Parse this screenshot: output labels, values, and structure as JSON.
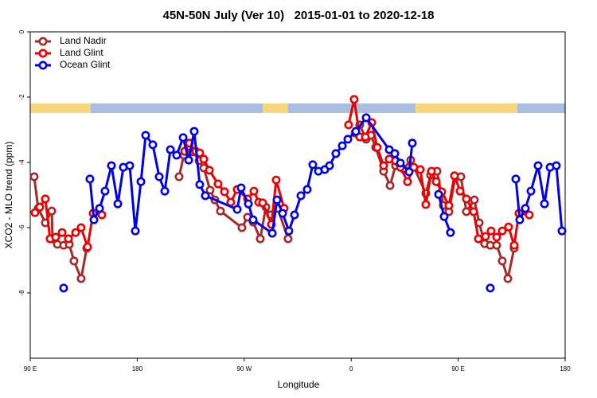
{
  "chart_data": {
    "type": "line",
    "title": "45N-50N July (Ver 10)   2015-01-01 to 2020-12-18",
    "xlabel": "Longitude",
    "ylabel": "XCO2 - MLO trend (ppm)",
    "xlim": [
      90,
      540
    ],
    "xticks": [
      {
        "value": 90,
        "label": "90 E"
      },
      {
        "value": 180,
        "label": "180"
      },
      {
        "value": 270,
        "label": "90 W"
      },
      {
        "value": 360,
        "label": "0"
      },
      {
        "value": 450,
        "label": "90 E"
      },
      {
        "value": 540,
        "label": "180"
      }
    ],
    "ylim": [
      -10,
      0
    ],
    "yticks": [
      0,
      -2,
      -4,
      -6,
      -8
    ],
    "legend": "top-left",
    "series": [
      {
        "name": "Land Nadir",
        "color": "#a52a2a",
        "x": [
          93.3,
          96.7,
          102.7,
          108.1,
          108.7,
          112.8,
          118.1,
          122.8,
          126.8,
          132.8,
          137.5,
          null,
          215.2,
          219.2,
          223.3,
          227.3,
          232.0,
          236.0,
          241.3,
          245.3,
          250.0,
          268.1,
          272.8,
          277.5,
          283.5,
          288.2,
          292.2,
          298.2,
          306.9,
          null,
          363.2,
          367.2,
          372.6,
          376.6,
          380.6,
          387.3,
          392.7,
          397.3,
          400.7,
          404.0,
          410.1,
          422.8,
          426.8,
          432.2,
          437.5,
          442.2,
          447.6,
          452.3,
          456.9,
          463.6,
          467.7,
          472.3,
          477.0,
          482.4,
          487.1,
          491.8,
          497.1
        ],
        "values": [
          -4.44,
          -5.41,
          -5.85,
          -5.49,
          -6.34,
          -6.51,
          -6.54,
          -6.51,
          -7.02,
          -7.56,
          -6.63,
          null,
          -4.44,
          -3.78,
          -3.71,
          -3.68,
          -3.95,
          -4.17,
          -4.85,
          -5.15,
          -5.49,
          -6.0,
          -5.68,
          -5.83,
          -6.34,
          -5.37,
          -5.61,
          -5.41,
          -6.34,
          null,
          -3.1,
          -2.85,
          -3.29,
          -3.17,
          -3.54,
          -4.27,
          -4.71,
          -4.1,
          -4.05,
          -4.2,
          -3.93,
          -4.95,
          -4.39,
          -4.27,
          -5.32,
          -5.51,
          -4.44,
          -4.44,
          -5.51,
          -5.15,
          -5.85,
          -6.49,
          -6.54,
          -6.54,
          -7.02,
          -7.56,
          -6.63
        ]
      },
      {
        "name": "Land Glint",
        "color": "#ee0000",
        "x": [
          94.0,
          98.0,
          102.7,
          106.7,
          111.4,
          116.8,
          122.1,
          128.2,
          132.8,
          138.2,
          142.9,
          150.3,
          null,
          219.9,
          223.9,
          229.3,
          232.6,
          236.0,
          240.7,
          248.0,
          253.4,
          258.7,
          264.1,
          272.8,
          278.2,
          282.2,
          285.5,
          292.9,
          296.9,
          303.6,
          null,
          357.8,
          362.5,
          367.2,
          371.9,
          377.3,
          381.9,
          387.3,
          392.0,
          397.3,
          401.4,
          407.4,
          412.7,
          418.1,
          422.8,
          427.5,
          431.5,
          436.2,
          442.2,
          446.9,
          451.6,
          456.9,
          463.0,
          467.0,
          473.0,
          477.7,
          482.4,
          487.1,
          492.4,
          497.1,
          501.1,
          509.8
        ],
        "values": [
          -5.54,
          -5.37,
          -5.12,
          -6.34,
          -6.29,
          -6.15,
          -6.34,
          -6.15,
          -6.0,
          -6.59,
          -5.56,
          -5.61,
          null,
          -3.66,
          -3.41,
          -3.66,
          -3.71,
          -3.9,
          -4.24,
          -4.66,
          -4.9,
          -5.22,
          -4.83,
          -5.12,
          -4.88,
          -5.22,
          -5.24,
          -5.9,
          -4.54,
          -5.41,
          null,
          -2.85,
          -2.07,
          -3.22,
          -3.22,
          -2.78,
          -3.54,
          -4.1,
          -3.9,
          -3.95,
          -4.15,
          -4.59,
          -4.15,
          -4.22,
          -5.29,
          -4.27,
          -4.59,
          -4.9,
          -5.32,
          -4.41,
          -4.88,
          -5.12,
          -5.51,
          -6.34,
          -6.27,
          -6.1,
          -6.29,
          -6.1,
          -5.98,
          -6.54,
          -5.56,
          -5.61
        ]
      },
      {
        "name": "Ocean Glint",
        "color": "#0000ee",
        "x": [
          118.1,
          null,
          140.2,
          143.6,
          148.3,
          152.9,
          158.3,
          163.7,
          168.3,
          173.7,
          178.4,
          183.1,
          187.1,
          193.1,
          198.5,
          203.2,
          207.9,
          213.2,
          218.6,
          223.3,
          227.9,
          232.6,
          237.3,
          264.1,
          267.4,
          273.5,
          277.5,
          293.6,
          297.6,
          302.3,
          307.6,
          312.3,
          317.7,
          323.0,
          327.7,
          332.4,
          337.8,
          341.8,
          347.1,
          352.5,
          357.2,
          363.9,
          372.6,
          392.0,
          396.7,
          401.4,
          408.7,
          411.4,
          null,
          433.5,
          438.2,
          443.5,
          null,
          477.0,
          null,
          498.5,
          501.8,
          506.5,
          511.2,
          517.2,
          522.6,
          527.3,
          532.6,
          537.3
        ],
        "values": [
          -7.85,
          null,
          -4.51,
          -5.76,
          -5.41,
          -4.88,
          -4.1,
          -5.27,
          -4.15,
          -4.1,
          -6.1,
          -4.59,
          -3.17,
          -3.46,
          -4.44,
          -4.88,
          -3.61,
          -3.78,
          -3.24,
          -3.93,
          -3.05,
          -4.68,
          -5.02,
          -5.44,
          -4.78,
          -5.27,
          -5.76,
          -6.17,
          -5.15,
          -5.56,
          -6.1,
          -5.61,
          -5.02,
          -4.83,
          -4.07,
          -4.27,
          -4.22,
          -4.1,
          -3.73,
          -3.49,
          -3.29,
          -3.05,
          -2.63,
          -3.61,
          -3.73,
          -4.02,
          -4.29,
          -3.41,
          null,
          -4.98,
          -5.66,
          -6.15,
          null,
          -7.85,
          null,
          -4.51,
          -5.76,
          -5.41,
          -4.88,
          -4.1,
          -5.27,
          -4.15,
          -4.1,
          -6.1
        ]
      }
    ]
  }
}
